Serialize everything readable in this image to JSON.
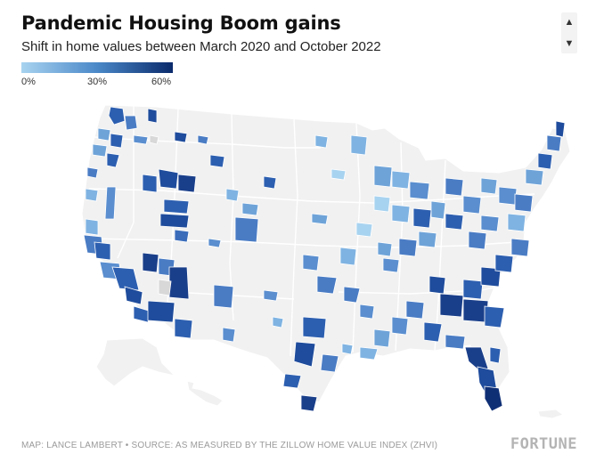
{
  "header": {
    "title": "Pandemic Housing Boom gains",
    "subtitle": "Shift in home values between March 2020 and October 2022"
  },
  "legend": {
    "labels": [
      "0%",
      "30%",
      "60%"
    ],
    "scale_min": 0,
    "scale_max": 60,
    "color_low": "#a8d3f0",
    "color_high": "#0a2a6b"
  },
  "scroll": {
    "up_icon": "chevron-up-icon",
    "down_icon": "chevron-down-icon"
  },
  "map": {
    "land_color": "#f1f1f1",
    "border_color": "#ffffff",
    "no_data_color": "#d8d8d8"
  },
  "footer": {
    "source": "MAP: LANCE LAMBERT • SOURCE: AS MEASURED BY THE ZILLOW HOME VALUE INDEX (ZHVI)",
    "logo": "FORTUNE"
  }
}
